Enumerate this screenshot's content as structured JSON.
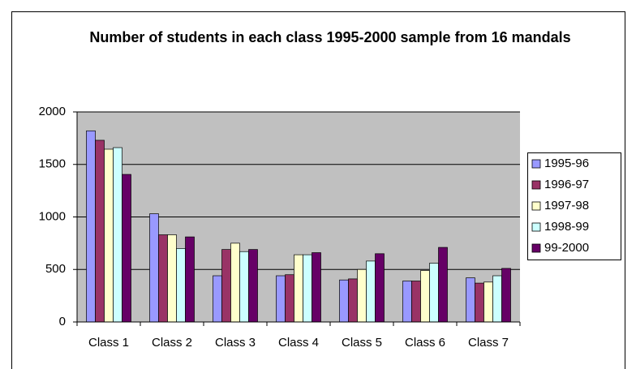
{
  "chart_data": {
    "type": "bar",
    "title": "Number of students in each class 1995-2000 sample from 16 mandals",
    "categories": [
      "Class 1",
      "Class 2",
      "Class 3",
      "Class 4",
      "Class 5",
      "Class 6",
      "Class 7"
    ],
    "series": [
      {
        "name": "1995-96",
        "color": "#9999ff",
        "values": [
          1820,
          1030,
          440,
          440,
          400,
          390,
          420
        ]
      },
      {
        "name": "1996-97",
        "color": "#993366",
        "values": [
          1730,
          830,
          690,
          450,
          410,
          390,
          370
        ]
      },
      {
        "name": "1997-98",
        "color": "#ffffcc",
        "values": [
          1645,
          830,
          750,
          640,
          500,
          490,
          380
        ]
      },
      {
        "name": "1998-99",
        "color": "#ccffff",
        "values": [
          1660,
          700,
          670,
          640,
          580,
          560,
          440
        ]
      },
      {
        "name": "99-2000",
        "color": "#660066",
        "values": [
          1405,
          810,
          690,
          660,
          650,
          710,
          510
        ]
      }
    ],
    "ylim": [
      0,
      2000
    ],
    "yticks": [
      0,
      500,
      1000,
      1500,
      2000
    ],
    "grid": true,
    "legend": "right"
  }
}
